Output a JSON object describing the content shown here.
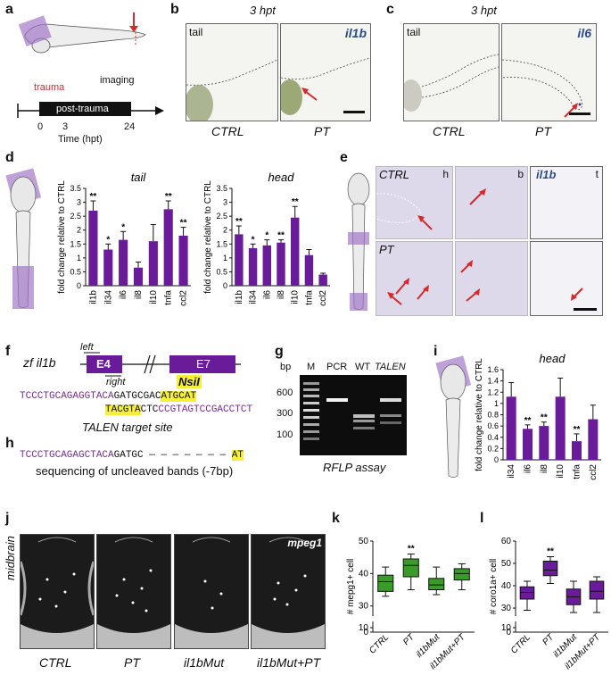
{
  "panels": {
    "a": {
      "label": "a",
      "trauma": "trauma",
      "post_trauma": "post-trauma",
      "imaging": "imaging",
      "ticks": [
        "0",
        "3",
        "24"
      ],
      "xlabel": "Time (hpt)"
    },
    "b": {
      "label": "b",
      "title": "3 hpt",
      "left_tag": "tail",
      "right_tag": "il1b",
      "cap_left": "CTRL",
      "cap_right": "PT"
    },
    "c": {
      "label": "c",
      "title": "3 hpt",
      "left_tag": "tail",
      "right_tag": "il6",
      "cap_left": "CTRL",
      "cap_right": "PT"
    },
    "d": {
      "label": "d"
    },
    "e": {
      "label": "e",
      "row1": "CTRL",
      "row2": "PT",
      "col_h": "h",
      "col_b": "b",
      "col_t": "t",
      "gene": "il1b"
    },
    "f": {
      "label": "f",
      "gene": "zf il1b",
      "exon1": "E4",
      "exon2": "E7",
      "left": "left",
      "right": "right",
      "site": "NsiI",
      "seq_top_a": "TCCCTGCAGAGGTACA",
      "seq_top_b": "GATGCGAC",
      "seq_top_c": "ATGCAT",
      "seq_bot_a": "TACGTA",
      "seq_bot_b": "CTC",
      "seq_bot_c": "CCGTAGTCCGACCTCT",
      "caption": "TALEN target site"
    },
    "g": {
      "label": "g",
      "bp": "bp",
      "ladder": [
        "600",
        "300",
        "100"
      ],
      "lanes": [
        "M",
        "PCR",
        "WT",
        "TALEN"
      ],
      "caption": "RFLP assay"
    },
    "h": {
      "label": "h",
      "seq_a": "TCCCTGCAGAGCTACA",
      "seq_b": "GATGC",
      "seq_dash": "— — — — — — —",
      "seq_c": "AT",
      "caption": "sequencing of uncleaved bands (-7bp)"
    },
    "i": {
      "label": "i"
    },
    "j": {
      "label": "j",
      "side": "midbrain",
      "marker": "mpeg1",
      "caps": [
        "CTRL",
        "PT",
        "il1bMut",
        "il1bMut+PT"
      ]
    },
    "k": {
      "label": "k"
    },
    "l": {
      "label": "l"
    }
  },
  "chart_data": [
    {
      "id": "d-tail",
      "type": "bar",
      "title": "tail",
      "ylabel": "fold change relative to CTRL",
      "ylim": [
        0,
        3.5
      ],
      "yticks": [
        "0",
        "0.5",
        "1",
        "1.5",
        "2",
        "2.5",
        "3",
        "3.5"
      ],
      "categories": [
        "il1b",
        "il34",
        "il6",
        "il8",
        "il10",
        "tnfa",
        "ccl2"
      ],
      "values": [
        2.7,
        1.3,
        1.65,
        0.65,
        1.6,
        2.75,
        1.8
      ],
      "errors": [
        0.35,
        0.2,
        0.3,
        0.2,
        0.6,
        0.3,
        0.3
      ],
      "significance": [
        "**",
        "*",
        "*",
        "",
        "",
        "**",
        "**"
      ],
      "color": "#6a1b9a"
    },
    {
      "id": "d-head",
      "type": "bar",
      "title": "head",
      "ylabel": "fold change relative to CTRL",
      "ylim": [
        0,
        3.5
      ],
      "yticks": [
        "0",
        "0.5",
        "1",
        "1.5",
        "2",
        "2.5",
        "3",
        "3.5"
      ],
      "categories": [
        "il1b",
        "il34",
        "il6",
        "il8",
        "il10",
        "tnfa",
        "ccl2"
      ],
      "values": [
        1.85,
        1.35,
        1.45,
        1.55,
        2.45,
        1.1,
        0.4
      ],
      "errors": [
        0.3,
        0.15,
        0.2,
        0.1,
        0.4,
        0.2,
        0.05
      ],
      "significance": [
        "**",
        "*",
        "*",
        "**",
        "**",
        "",
        ""
      ],
      "color": "#6a1b9a"
    },
    {
      "id": "i-head",
      "type": "bar",
      "title": "head",
      "ylabel": "fold change relative to CTRL",
      "ylim": [
        0,
        1.6
      ],
      "yticks": [
        "0",
        "0.2",
        "0.4",
        "0.6",
        "0.8",
        "1",
        "1.2",
        "1.4",
        "1.6"
      ],
      "categories": [
        "il34",
        "il6",
        "il8",
        "il10",
        "tnfa",
        "ccl2"
      ],
      "values": [
        1.12,
        0.55,
        0.6,
        1.12,
        0.33,
        0.72
      ],
      "errors": [
        0.25,
        0.07,
        0.07,
        0.33,
        0.13,
        0.25
      ],
      "significance": [
        "",
        "**",
        "**",
        "",
        "**",
        ""
      ],
      "color": "#6a1b9a"
    },
    {
      "id": "k",
      "type": "box",
      "ylabel": "# mepg1+ cell",
      "ylim": [
        0,
        50
      ],
      "yticks": [
        "0",
        "10",
        "30",
        "40",
        "50"
      ],
      "categories": [
        "CTRL",
        "PT",
        "il1bMut",
        "il1bMut+PT"
      ],
      "boxes": [
        [
          33,
          34.5,
          37.5,
          39.5,
          42
        ],
        [
          35,
          39,
          42.5,
          44.5,
          46
        ],
        [
          33.5,
          35,
          36.5,
          38.5,
          42
        ],
        [
          35,
          38,
          40,
          41.5,
          43
        ]
      ],
      "significance": [
        "",
        "**",
        "",
        ""
      ],
      "color": "#3a9a2a"
    },
    {
      "id": "l",
      "type": "box",
      "ylabel": "# coro1a+ cell",
      "ylim": [
        0,
        60
      ],
      "yticks": [
        "0",
        "10",
        "20",
        "30",
        "40",
        "50",
        "60"
      ],
      "categories": [
        "CTRL",
        "PT",
        "il1bMut",
        "il1bMut+PT"
      ],
      "boxes": [
        [
          29,
          34,
          37,
          39.5,
          42
        ],
        [
          41,
          44.5,
          47,
          51,
          53
        ],
        [
          28,
          31.5,
          35,
          38.5,
          42
        ],
        [
          28,
          34,
          37.5,
          42,
          44
        ]
      ],
      "significance": [
        "",
        "**",
        "",
        ""
      ],
      "color": "#6a1b9a"
    }
  ]
}
